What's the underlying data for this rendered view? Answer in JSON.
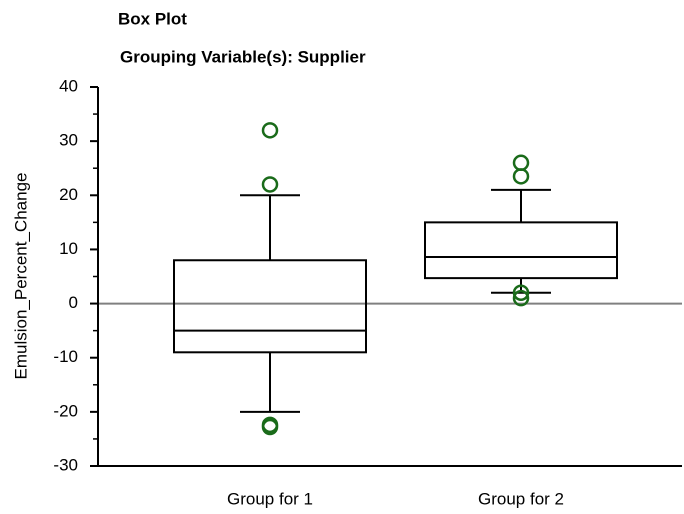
{
  "chart_data": {
    "type": "box",
    "title": "Box Plot",
    "subtitle": "Grouping Variable(s): Supplier",
    "y_label": "Emulsion_Percent_Change",
    "categories": [
      "Group for 1",
      "Group for 2"
    ],
    "boxes": [
      {
        "min": -20,
        "q1": -9,
        "median": -5,
        "q3": 8,
        "max": 20,
        "outliers": [
          32,
          22,
          -22.4,
          -22.8
        ]
      },
      {
        "min": 2,
        "q1": 4.7,
        "median": 8.6,
        "q3": 15,
        "max": 21,
        "outliers": [
          26,
          23.5,
          2,
          1
        ]
      }
    ],
    "box_color": "#000000",
    "outlier_color": "#1a6b1a",
    "reference_line": 0,
    "reference_color": "#808080",
    "ylim": [
      -30,
      40
    ],
    "yticks": [
      -30,
      -20,
      -10,
      0,
      10,
      20,
      30,
      40
    ],
    "yminorticks": [
      -25,
      -15,
      -5,
      5,
      15,
      25,
      35
    ]
  }
}
